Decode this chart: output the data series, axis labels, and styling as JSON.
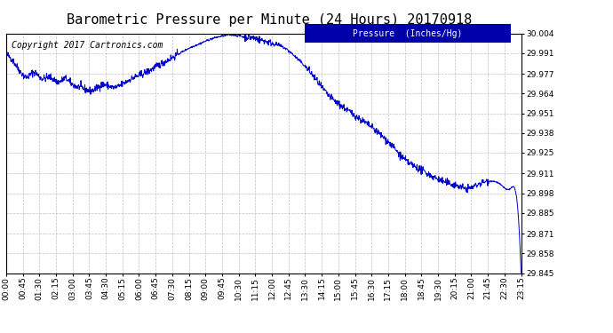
{
  "title": "Barometric Pressure per Minute (24 Hours) 20170918",
  "copyright_text": "Copyright 2017 Cartronics.com",
  "legend_label": "Pressure  (Inches/Hg)",
  "line_color": "#0000cc",
  "background_color": "#ffffff",
  "grid_color": "#b0b0b0",
  "legend_bg": "#0000aa",
  "legend_fg": "#ffffff",
  "ylim_min": 29.845,
  "ylim_max": 30.004,
  "yticks": [
    29.845,
    29.858,
    29.871,
    29.885,
    29.898,
    29.911,
    29.925,
    29.938,
    29.951,
    29.964,
    29.977,
    29.991,
    30.004
  ],
  "xtick_labels": [
    "00:00",
    "00:45",
    "01:30",
    "02:15",
    "03:00",
    "03:45",
    "04:30",
    "05:15",
    "06:00",
    "06:45",
    "07:30",
    "08:15",
    "09:00",
    "09:45",
    "10:30",
    "11:15",
    "12:00",
    "12:45",
    "13:30",
    "14:15",
    "15:00",
    "15:45",
    "16:30",
    "17:15",
    "18:00",
    "18:45",
    "19:30",
    "20:15",
    "21:00",
    "21:45",
    "22:30",
    "23:15"
  ],
  "title_fontsize": 11,
  "copyright_fontsize": 7,
  "tick_fontsize": 6.5,
  "legend_fontsize": 7
}
